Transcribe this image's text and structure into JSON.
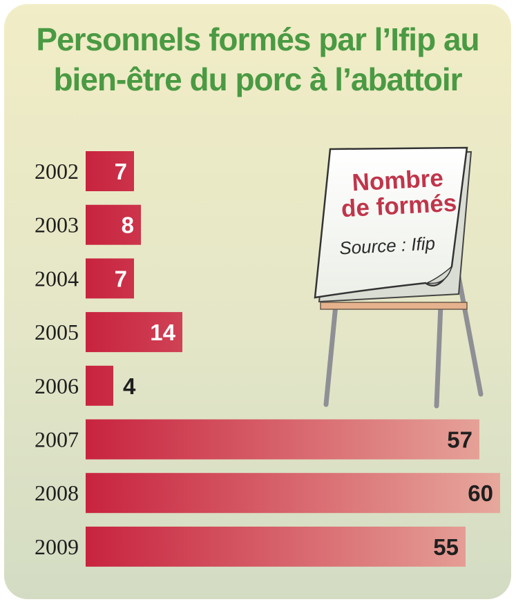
{
  "chart_data": {
    "type": "bar",
    "orientation": "horizontal",
    "title_lines": [
      "Personnels formés par l’Ifip au",
      "bien-être du porc à l’abattoir"
    ],
    "legend": {
      "heading_lines": [
        "Nombre",
        "de formés"
      ],
      "source": "Source : Ifip"
    },
    "categories": [
      "2002",
      "2003",
      "2004",
      "2005",
      "2006",
      "2007",
      "2008",
      "2009"
    ],
    "values": [
      7,
      8,
      7,
      14,
      4,
      57,
      60,
      55
    ],
    "xlim": [
      0,
      60
    ],
    "grid": false,
    "colors": {
      "bar_start": "#c8233f",
      "bar_end": "#e7a89c",
      "title": "#4a9a43",
      "legend_heading": "#c0354a"
    }
  }
}
